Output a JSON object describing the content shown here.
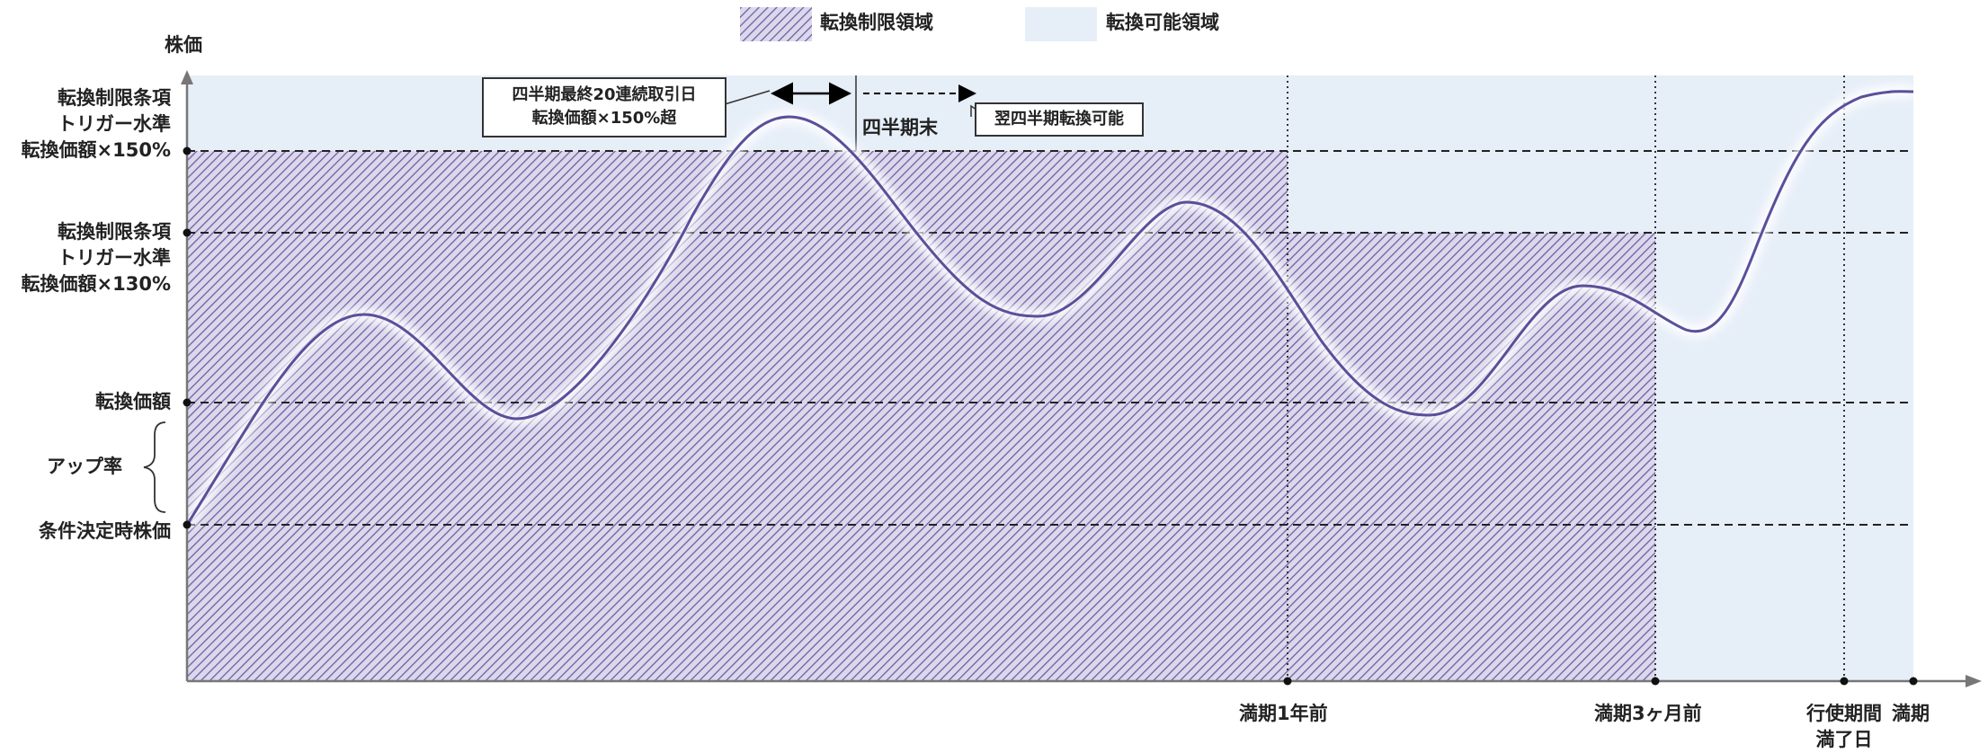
{
  "legend": {
    "restricted": {
      "label": "転換制限領域",
      "color": "#5a4f9a"
    },
    "allowed": {
      "label": "転換可能領域",
      "color": "#e6eef8"
    }
  },
  "axes": {
    "y_label": "株価"
  },
  "levels": {
    "trigger150": [
      "転換制限条項",
      "トリガー水準",
      "転換価額×150%"
    ],
    "trigger130": [
      "転換制限条項",
      "トリガー水準",
      "転換価額×130%"
    ],
    "conversion_price": "転換価額",
    "up_rate": "アップ率",
    "initial_price": "条件決定時株価"
  },
  "callouts": {
    "condition": [
      "四半期最終20連続取引日",
      "転換価額×150%超"
    ],
    "quarter_end": "四半期末",
    "next_quarter": "翌四半期転換可能"
  },
  "x_markers": {
    "one_year_before": "満期1年前",
    "three_months_before": "満期3ヶ月前",
    "exercise_end": [
      "行使期間",
      "満了日"
    ],
    "maturity": "満期"
  },
  "colors": {
    "curve": "#5a4f9a",
    "hatch": "#5a4f9a",
    "allowed": "#e6eef8",
    "axis": "#777777"
  }
}
